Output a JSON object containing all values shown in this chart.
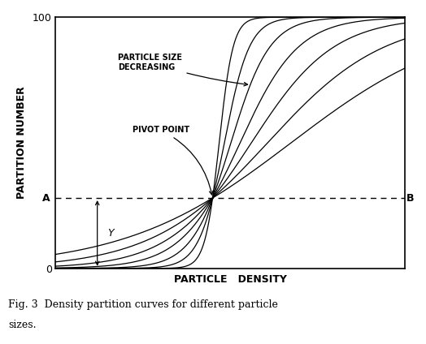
{
  "xlabel": "PARTICLE   DENSITY",
  "ylabel": "PARTITION NUMBER",
  "ylim": [
    0,
    100
  ],
  "xlim": [
    0,
    10
  ],
  "pivot_x": 4.5,
  "pivot_y": 28,
  "line_color": "#000000",
  "bg_color": "#ffffff",
  "caption_line1": "Fig. 3  Density partition curves for different particle",
  "caption_line2": "sizes.",
  "curve_steepnesses": [
    5.0,
    2.8,
    1.8,
    1.2,
    0.85,
    0.6,
    0.42
  ],
  "annotation_pivot": "PIVOT POINT",
  "annotation_size_text": "PARTICLE SIZE\nDECREASING"
}
